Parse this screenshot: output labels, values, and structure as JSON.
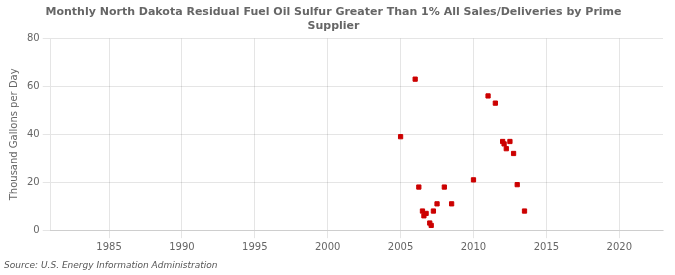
{
  "chart_data": {
    "type": "scatter",
    "title": "Monthly North Dakota Residual Fuel Oil Sulfur Greater Than 1% All Sales/Deliveries by Prime\nSupplier",
    "ylabel": "Thousand Gallons per Day",
    "annotation": "Source: U.S. Energy Information Administration",
    "x": [
      2005.0,
      2006.0,
      2006.25,
      2006.5,
      2006.6,
      2006.75,
      2007.0,
      2007.1,
      2007.25,
      2007.5,
      2008.0,
      2008.5,
      2010.0,
      2011.0,
      2011.5,
      2012.0,
      2012.1,
      2012.25,
      2012.5,
      2012.75,
      2013.0,
      2013.5
    ],
    "values": [
      39.0,
      63.0,
      18.0,
      8.0,
      6.0,
      7.0,
      3.0,
      2.0,
      8.0,
      11.0,
      18.0,
      11.0,
      21.0,
      56.0,
      53.0,
      37.0,
      36.0,
      34.0,
      37.0,
      32.0,
      19.0,
      8.0
    ],
    "color": "#cc0000",
    "marker": "square",
    "xlim": [
      1981,
      2023
    ],
    "ylim": [
      0,
      80
    ],
    "xticks": [
      1985,
      1990,
      1995,
      2000,
      2005,
      2010,
      2015,
      2020
    ],
    "yticks": [
      0,
      20,
      40,
      60,
      80
    ],
    "grid": true
  }
}
